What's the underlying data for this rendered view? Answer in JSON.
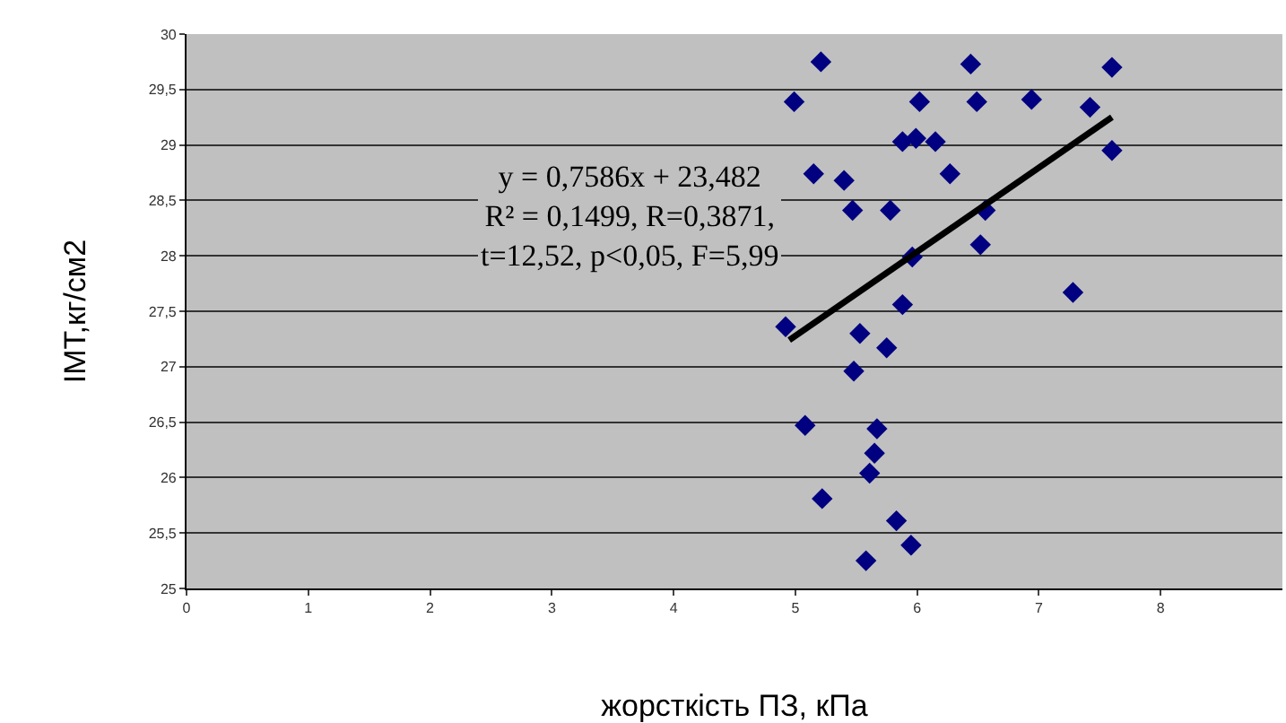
{
  "chart_data": {
    "type": "scatter",
    "xlabel": "жорсткість ПЗ, кПа",
    "ylabel": "IMT,кг/см2",
    "annotations": [
      "y = 0,7586x + 23,482\nR² = 0,1499, R=0,3871,\nt=12,52, p<0,05, F=5,99"
    ],
    "series": [
      {
        "color": "#000080",
        "marker": "diamond",
        "x": [
          5.21,
          6.44,
          7.6,
          4.99,
          5.98,
          6.02,
          6.49,
          6.94,
          7.42,
          5.88,
          5.99,
          6.15,
          7.6,
          5.15,
          5.4,
          6.27,
          5.47,
          5.78,
          6.56,
          5.96,
          6.52,
          7.28,
          5.88,
          4.92,
          5.53,
          5.75,
          5.48,
          5.08,
          5.67,
          5.65,
          5.61,
          5.22,
          5.83,
          5.95,
          5.58
        ],
        "values": [
          29.75,
          29.73,
          29.7,
          29.39,
          null,
          29.39,
          29.39,
          29.41,
          29.34,
          29.03,
          29.06,
          29.03,
          28.95,
          28.74,
          28.68,
          28.74,
          28.41,
          28.41,
          28.41,
          27.99,
          28.1,
          27.67,
          27.56,
          27.36,
          27.3,
          27.17,
          26.96,
          26.47,
          26.44,
          26.22,
          26.04,
          25.81,
          25.61,
          25.39,
          25.25
        ]
      },
      {
        "type": "line",
        "color": "#000000",
        "marker": "none",
        "x": [
          4.95,
          7.6
        ],
        "values": [
          27.24,
          29.25
        ]
      }
    ],
    "xlim": [
      0,
      9
    ],
    "xticks": [
      0,
      1,
      2,
      3,
      4,
      5,
      6,
      7,
      8
    ],
    "ylim": [
      25,
      30
    ],
    "yticks": [
      25,
      {
        "value": 25.5,
        "label": "25,5"
      },
      26,
      {
        "value": 26.5,
        "label": "26,5"
      },
      27,
      {
        "value": 27.5,
        "label": "27,5"
      },
      28,
      {
        "value": 28.5,
        "label": "28,5"
      },
      29,
      {
        "value": 29.5,
        "label": "29,5"
      },
      30
    ],
    "grid": "y"
  }
}
